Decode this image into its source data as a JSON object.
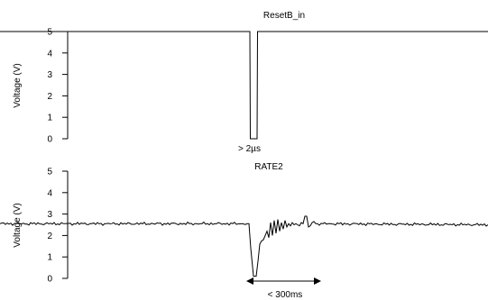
{
  "chart_data": [
    {
      "type": "line",
      "title": "ResetB_in",
      "ylabel": "Voltage (V)",
      "ylim": [
        0,
        5
      ],
      "yticks": [
        "0",
        "1",
        "2",
        "3",
        "4",
        "5"
      ],
      "grid": false,
      "series": [
        {
          "x": [
            0,
            277,
            277.5,
            279,
            283.5,
            285,
            285.5,
            541
          ],
          "y": [
            5,
            5,
            0,
            0,
            0,
            0,
            5,
            5
          ]
        }
      ],
      "annotation": {
        "text": "> 2µs"
      }
    },
    {
      "type": "line",
      "title": "RATE2",
      "ylabel": "Voltage (V)",
      "ylim": [
        0,
        5
      ],
      "yticks": [
        "0",
        "1",
        "2",
        "3",
        "4",
        "5"
      ],
      "grid": false,
      "series": [
        {
          "x": [
            0,
            276,
            278,
            281,
            284,
            286,
            288,
            290,
            292,
            294,
            296,
            298,
            300,
            302,
            304,
            306,
            308,
            310,
            312,
            314,
            316,
            318,
            320,
            322,
            324,
            326,
            328,
            330,
            332,
            334,
            336,
            338,
            340,
            342,
            344,
            346,
            348,
            350,
            541
          ],
          "y": [
            2.55,
            2.55,
            1.4,
            0.1,
            0.1,
            0.8,
            1.6,
            1.75,
            1.8,
            2.0,
            2.2,
            1.9,
            2.6,
            2.0,
            2.7,
            2.1,
            2.75,
            2.2,
            2.6,
            2.3,
            2.7,
            2.4,
            2.55,
            2.45,
            2.6,
            2.5,
            2.55,
            2.5,
            2.45,
            2.6,
            2.55,
            2.9,
            2.9,
            2.4,
            2.45,
            2.6,
            2.65,
            2.55,
            2.5
          ]
        }
      ],
      "annotation": {
        "text": "< 300ms"
      }
    }
  ]
}
